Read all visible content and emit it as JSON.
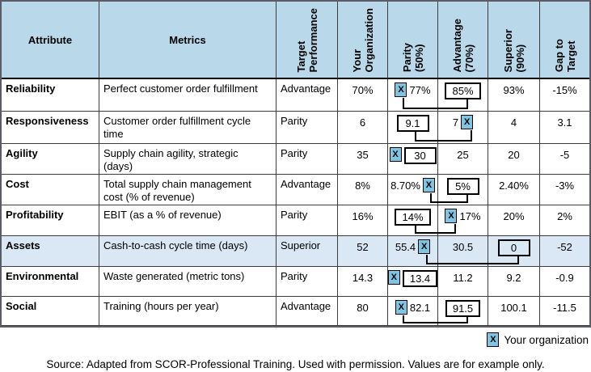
{
  "marker_glyph": "X",
  "colors": {
    "header_bg": "#b9d9ea",
    "highlight_row_bg": "#d9e8f4",
    "marker_bg": "#7ec5e3",
    "grid_line": "#3c3c3c",
    "outer_border": "#5c5c66"
  },
  "header": {
    "columns": [
      {
        "id": "attribute",
        "label": "Attribute",
        "rotated": false
      },
      {
        "id": "metric",
        "label": "Metrics",
        "rotated": false
      },
      {
        "id": "target",
        "label": "Target\nPerformance",
        "rotated": true
      },
      {
        "id": "your_org",
        "label": "Your\nOrganization",
        "rotated": true
      },
      {
        "id": "parity",
        "label": "Parity\n(50%)",
        "rotated": true
      },
      {
        "id": "advantage",
        "label": "Advantage\n(70%)",
        "rotated": true
      },
      {
        "id": "superior",
        "label": "Superior\n(90%)",
        "rotated": true
      },
      {
        "id": "gap",
        "label": "Gap to\nTarget",
        "rotated": true
      }
    ]
  },
  "rows": [
    {
      "attribute": "Reliability",
      "metric": "Perfect customer order fulfillment",
      "target": "Advantage",
      "your_org": "70%",
      "parity": {
        "text": "77%",
        "marker": "left"
      },
      "advantage": {
        "text": "85%",
        "boxed": true
      },
      "superior": {
        "text": "93%"
      },
      "gap": "-15%",
      "highlight": false,
      "connector": {
        "from": [
          "parity",
          "marker"
        ],
        "to": [
          "advantage",
          "box"
        ]
      }
    },
    {
      "attribute": "Responsiveness",
      "metric": "Customer order fulfillment cycle time",
      "target": "Parity",
      "your_org": "6",
      "parity": {
        "text": "9.1",
        "boxed": true
      },
      "advantage": {
        "text": "7",
        "marker": "right"
      },
      "superior": {
        "text": "4"
      },
      "gap": "3.1",
      "highlight": false,
      "connector": {
        "from": [
          "parity",
          "box"
        ],
        "to": [
          "advantage",
          "marker"
        ]
      }
    },
    {
      "attribute": "Agility",
      "metric": "Supply chain agility, strategic (days)",
      "target": "Parity",
      "your_org": "35",
      "parity": {
        "text": "30",
        "marker": "left",
        "boxed": true
      },
      "advantage": {
        "text": "25"
      },
      "superior": {
        "text": "20"
      },
      "gap": "-5",
      "highlight": false,
      "connector": null
    },
    {
      "attribute": "Cost",
      "metric": "Total supply chain management cost (% of revenue)",
      "target": "Advantage",
      "your_org": "8%",
      "parity": {
        "text": "8.70%",
        "marker": "right"
      },
      "advantage": {
        "text": "5%",
        "boxed": true
      },
      "superior": {
        "text": "2.40%"
      },
      "gap": "-3%",
      "highlight": false,
      "connector": {
        "from": [
          "parity",
          "marker"
        ],
        "to": [
          "advantage",
          "box"
        ]
      }
    },
    {
      "attribute": "Profitability",
      "metric": "EBIT (as a % of revenue)",
      "target": "Parity",
      "your_org": "16%",
      "parity": {
        "text": "14%",
        "boxed": true
      },
      "advantage": {
        "text": "17%",
        "marker": "left"
      },
      "superior": {
        "text": "20%"
      },
      "gap": "2%",
      "highlight": false,
      "connector": {
        "from": [
          "parity",
          "box"
        ],
        "to": [
          "advantage",
          "marker"
        ]
      }
    },
    {
      "attribute": "Assets",
      "metric": "Cash-to-cash cycle time (days)",
      "target": "Superior",
      "your_org": "52",
      "parity": {
        "text": "55.4",
        "marker": "right"
      },
      "advantage": {
        "text": "30.5"
      },
      "superior": {
        "text": "0",
        "boxed": true
      },
      "gap": "-52",
      "highlight": true,
      "connector": {
        "from": [
          "parity",
          "marker"
        ],
        "to": [
          "superior",
          "box"
        ]
      }
    },
    {
      "attribute": "Environmental",
      "metric": "Waste generated (metric tons)",
      "target": "Parity",
      "your_org": "14.3",
      "parity": {
        "text": "13.4",
        "marker": "left",
        "boxed": true
      },
      "advantage": {
        "text": "11.2"
      },
      "superior": {
        "text": "9.2"
      },
      "gap": "-0.9",
      "highlight": false,
      "connector": null
    },
    {
      "attribute": "Social",
      "metric": "Training (hours per year)",
      "target": "Advantage",
      "your_org": "80",
      "parity": {
        "text": "82.1",
        "marker": "left"
      },
      "advantage": {
        "text": "91.5",
        "boxed": true
      },
      "superior": {
        "text": "100.1"
      },
      "gap": "-11.5",
      "highlight": false,
      "connector": {
        "from": [
          "parity",
          "marker"
        ],
        "to": [
          "advantage",
          "box"
        ]
      }
    }
  ],
  "legend": {
    "label": "Your organization"
  },
  "source": "Source: Adapted from SCOR-Professional Training. Used with permission. Values are for example only."
}
